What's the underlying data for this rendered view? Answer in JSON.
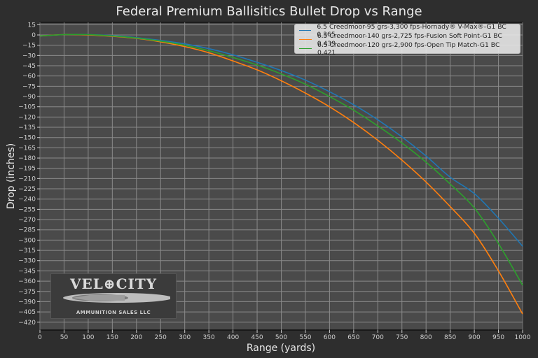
{
  "chart_data": {
    "type": "line",
    "title": "Federal Premium Ballisitics Bullet Drop vs Range",
    "xlabel": "Range (yards)",
    "ylabel": "Drop (inches)",
    "xlim": [
      0,
      1000
    ],
    "ylim": [
      -430,
      18
    ],
    "grid": true,
    "legend_position": "upper right",
    "x_ticks": [
      0,
      50,
      100,
      150,
      200,
      250,
      300,
      350,
      400,
      450,
      500,
      550,
      600,
      650,
      700,
      750,
      800,
      850,
      900,
      950,
      1000
    ],
    "y_ticks": [
      15,
      0,
      -15,
      -30,
      -45,
      -60,
      -75,
      -90,
      -105,
      -120,
      -135,
      -150,
      -165,
      -180,
      -195,
      -210,
      -225,
      -240,
      -255,
      -270,
      -285,
      -300,
      -315,
      -330,
      -345,
      -360,
      -375,
      -390,
      -405,
      -420
    ],
    "x": [
      0,
      50,
      100,
      150,
      200,
      250,
      300,
      350,
      400,
      450,
      500,
      550,
      600,
      650,
      700,
      750,
      800,
      850,
      900,
      950,
      1000
    ],
    "series": [
      {
        "name": "6.5 Creedmoor-95 grs-3,300 fps-Hornady® V-Max®-G1 BC 0.365",
        "color": "#1f77b4",
        "values": [
          -1.5,
          0.5,
          0.5,
          -1,
          -4,
          -8,
          -13,
          -20,
          -29,
          -40,
          -52,
          -66,
          -83,
          -102,
          -124,
          -149,
          -177,
          -208,
          -232,
          -268,
          -309
        ]
      },
      {
        "name": "6.5 Creedmoor-140 grs-2,725 fps-Fusion Soft Point-G1 BC 0.439",
        "color": "#ff7f0e",
        "values": [
          -1.5,
          0.5,
          0,
          -2,
          -5,
          -10,
          -17,
          -26,
          -38,
          -51,
          -67,
          -85,
          -105,
          -128,
          -154,
          -183,
          -215,
          -251,
          -290,
          -345,
          -408
        ]
      },
      {
        "name": "6.5 Creedmoor-120 grs-2,900 fps-Open Tip Match-G1 BC 0.421",
        "color": "#2ca02c",
        "values": [
          -1.5,
          0.5,
          0.5,
          -1.5,
          -4.5,
          -9,
          -15,
          -23,
          -33,
          -44,
          -57,
          -72,
          -90,
          -110,
          -133,
          -158,
          -186,
          -218,
          -253,
          -305,
          -366
        ]
      }
    ]
  },
  "legend": {
    "items": [
      {
        "label": "6.5 Creedmoor-95 grs-3,300 fps-Hornady® V-Max®-G1 BC 0.365",
        "color": "#1f77b4"
      },
      {
        "label": "6.5 Creedmoor-140 grs-2,725 fps-Fusion Soft Point-G1 BC 0.439",
        "color": "#ff7f0e"
      },
      {
        "label": "6.5 Creedmoor-120 grs-2,900 fps-Open Tip Match-G1 BC 0.421",
        "color": "#2ca02c"
      }
    ]
  },
  "logo": {
    "top_text": "VEL⊕CITY",
    "bottom_text": "AMMUNITION SALES LLC"
  },
  "colors": {
    "figure_bg": "#2e2e2e",
    "axes_bg": "#4a4a4a",
    "grid": "#8a8a8a"
  }
}
